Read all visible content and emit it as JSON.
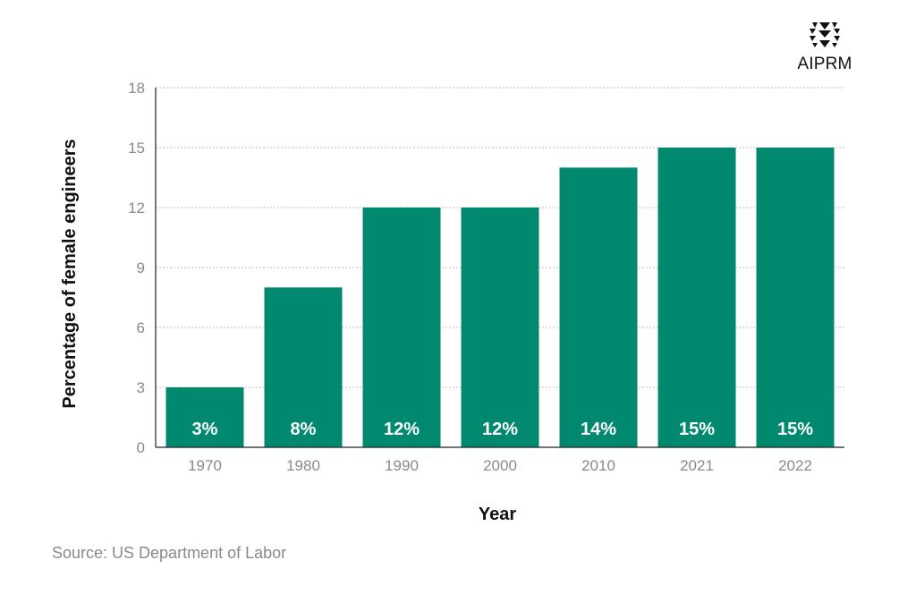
{
  "brand": {
    "name": "AIPRM"
  },
  "source": "Source: US Department of Labor",
  "colors": {
    "bar": "#00896F",
    "axis": "#222222",
    "grid": "#bdbdbd",
    "tick": "#8a8a8a",
    "label_text": "#ffffff"
  },
  "chart_data": {
    "type": "bar",
    "categories": [
      "1970",
      "1980",
      "1990",
      "2000",
      "2010",
      "2021",
      "2022"
    ],
    "values": [
      3,
      8,
      12,
      12,
      14,
      15,
      15
    ],
    "data_labels": [
      "3%",
      "8%",
      "12%",
      "12%",
      "14%",
      "15%",
      "15%"
    ],
    "xlabel": "Year",
    "ylabel": "Percentage of female engineers",
    "ylim": [
      0,
      18
    ],
    "yticks": [
      0,
      3,
      6,
      9,
      12,
      15,
      18
    ],
    "grid": true
  }
}
